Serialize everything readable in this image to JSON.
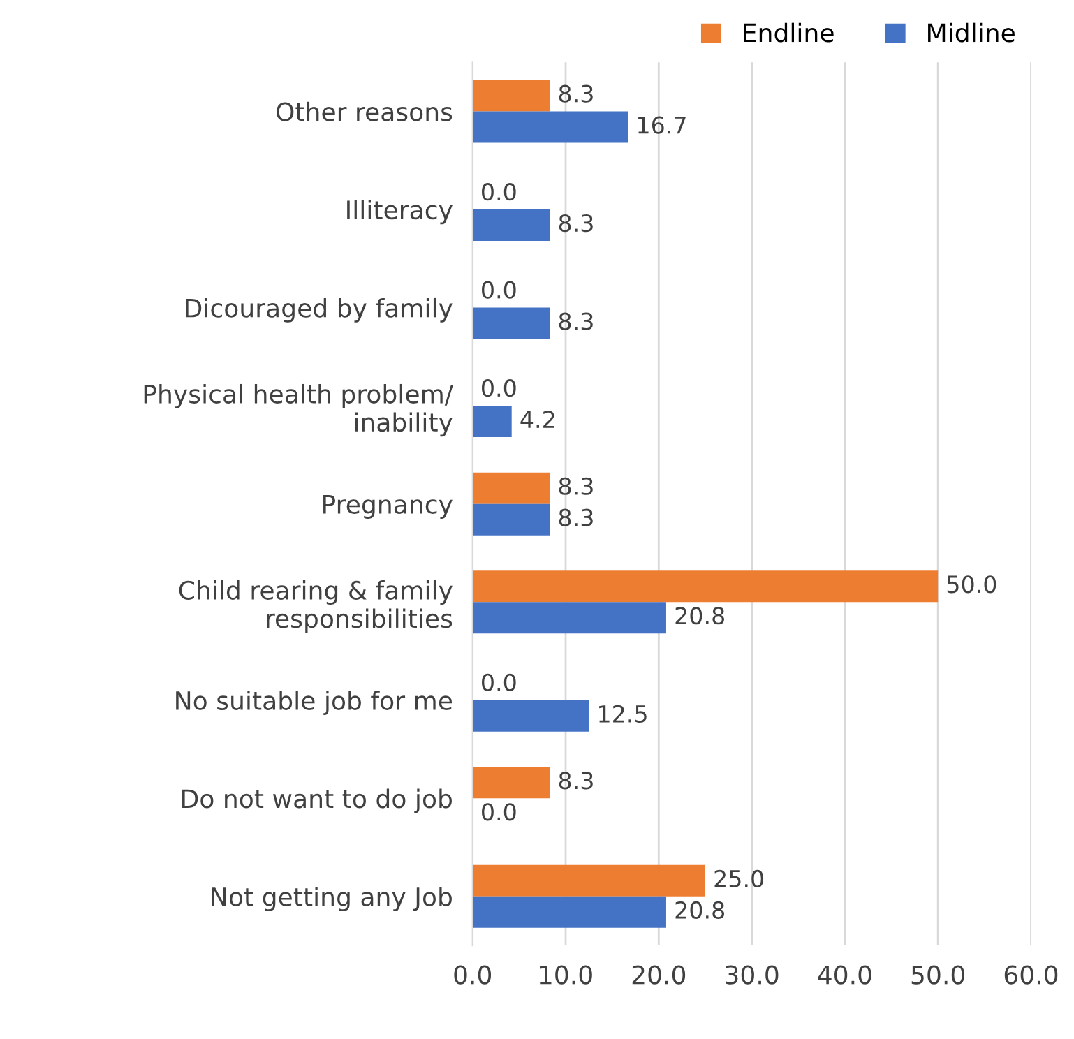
{
  "chart_data": {
    "type": "bar",
    "orientation": "horizontal",
    "categories": [
      "Other reasons",
      "Illiteracy",
      "Dicouraged by family",
      "Physical health problem/\ninability",
      "Pregnancy",
      "Child rearing & family\nresponsibilities",
      "No suitable job for me",
      "Do not want to do job",
      "Not getting any Job"
    ],
    "series": [
      {
        "name": "Endline",
        "color": "#ed7d31",
        "values": [
          8.3,
          0,
          0,
          0,
          8.3,
          50.0,
          0,
          8.3,
          25.0
        ],
        "value_labels": [
          "8.3",
          "0.0",
          "0.0",
          "0.0",
          "8.3",
          "50.0",
          "0.0",
          "8.3",
          "25.0"
        ]
      },
      {
        "name": "Midline",
        "color": "#4472c4",
        "values": [
          16.7,
          8.3,
          8.3,
          4.2,
          8.3,
          20.8,
          12.5,
          0,
          20.8
        ],
        "value_labels": [
          "16.7",
          "8.3",
          "8.3",
          "4.2",
          "8.3",
          "20.8",
          "12.5",
          "0.0",
          "20.8"
        ]
      }
    ],
    "xlim": [
      0,
      60
    ],
    "xticks": [
      {
        "value": 0,
        "label": "0.0"
      },
      {
        "value": 10,
        "label": "10.0"
      },
      {
        "value": 20,
        "label": "20.0"
      },
      {
        "value": 30,
        "label": "30.0"
      },
      {
        "value": 40,
        "label": "40.0"
      },
      {
        "value": 50,
        "label": "50.0"
      },
      {
        "value": 60,
        "label": "60.0"
      }
    ],
    "grid": "x",
    "legend": "top right"
  }
}
